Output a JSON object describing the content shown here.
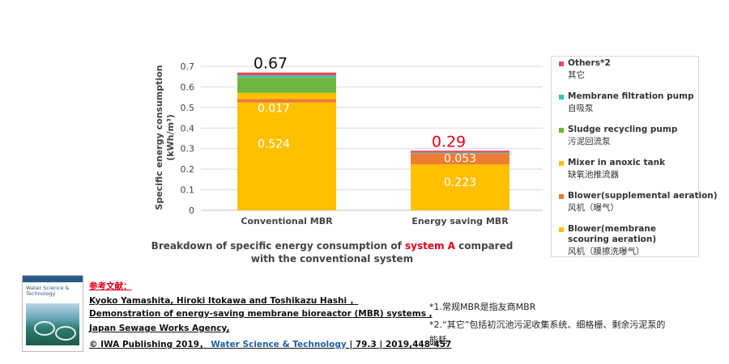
{
  "chart_data": {
    "type": "bar",
    "stacked": true,
    "categories": [
      "Conventional MBR",
      "Energy saving MBR"
    ],
    "ylabel": "Specific energy consumption\n(kWh/m³)",
    "ylim": [
      0,
      0.7
    ],
    "yticks": [
      0,
      0.1,
      0.2,
      0.3,
      0.4,
      0.5,
      0.6,
      0.7
    ],
    "grid": true,
    "legend_position": "right",
    "totals": [
      0.67,
      0.29
    ],
    "series": [
      {
        "name": "Blower(membrane scouring aeration)",
        "name_zh": "风机（膜擦洗曝气）",
        "color": "#ffc000",
        "values": [
          0.524,
          0.223
        ],
        "labels": [
          "0.524",
          "0.223"
        ]
      },
      {
        "name": "Blower(supplemental aeration)",
        "name_zh": "风机（曝气）",
        "color": "#ed7d31",
        "values": [
          0.017,
          0.053
        ],
        "labels": [
          "0.017",
          "0.053"
        ]
      },
      {
        "name": "Mixer in anoxic tank",
        "name_zh": "缺氧池推流器",
        "color": "#ffc000",
        "values": [
          0.03,
          0.0
        ],
        "labels": [
          "",
          ""
        ]
      },
      {
        "name": "Sludge recycling pump",
        "name_zh": "污泥回流泵",
        "color": "#70b542",
        "values": [
          0.075,
          0.0
        ],
        "labels": [
          "",
          ""
        ]
      },
      {
        "name": "Membrane filtration pump",
        "name_zh": "自吸泵",
        "color": "#2ec4b6",
        "values": [
          0.01,
          0.004
        ],
        "labels": [
          "",
          ""
        ]
      },
      {
        "name": "Others*2",
        "name_zh": "其它",
        "color": "#e84a5f",
        "values": [
          0.014,
          0.01
        ],
        "labels": [
          "",
          ""
        ]
      }
    ],
    "total_label_colors": [
      "#111111",
      "#e4001b"
    ]
  },
  "legend_order": [
    5,
    4,
    3,
    2,
    1,
    0
  ],
  "caption": {
    "part1": "Breakdown of specific energy consumption of ",
    "highlight": "system A",
    "part2": " compared with the conventional system"
  },
  "cover": {
    "title": "Water Science & Technology"
  },
  "reference": {
    "heading": "参考文献：",
    "line1": "Kyoko Yamashita, Hiroki Itokawa and Toshikazu Hashi ，",
    "line2": "Demonstration of energy-saving membrane bioreactor (MBR) systems ,",
    "line3": "Japan Sewage Works Agency,",
    "line4_a": " © IWA Publishing 2019， ",
    "line4_b": "Water Science & Technology",
    "line4_c": " | 79.3 | 2019,448-457"
  },
  "notes": {
    "n1": "*1.常规MBR是指友商MBR",
    "n2a": "*2.“其它”包括初沉池污泥收集系统、细格栅、剩余污泥泵的",
    "n2b": "能耗"
  }
}
